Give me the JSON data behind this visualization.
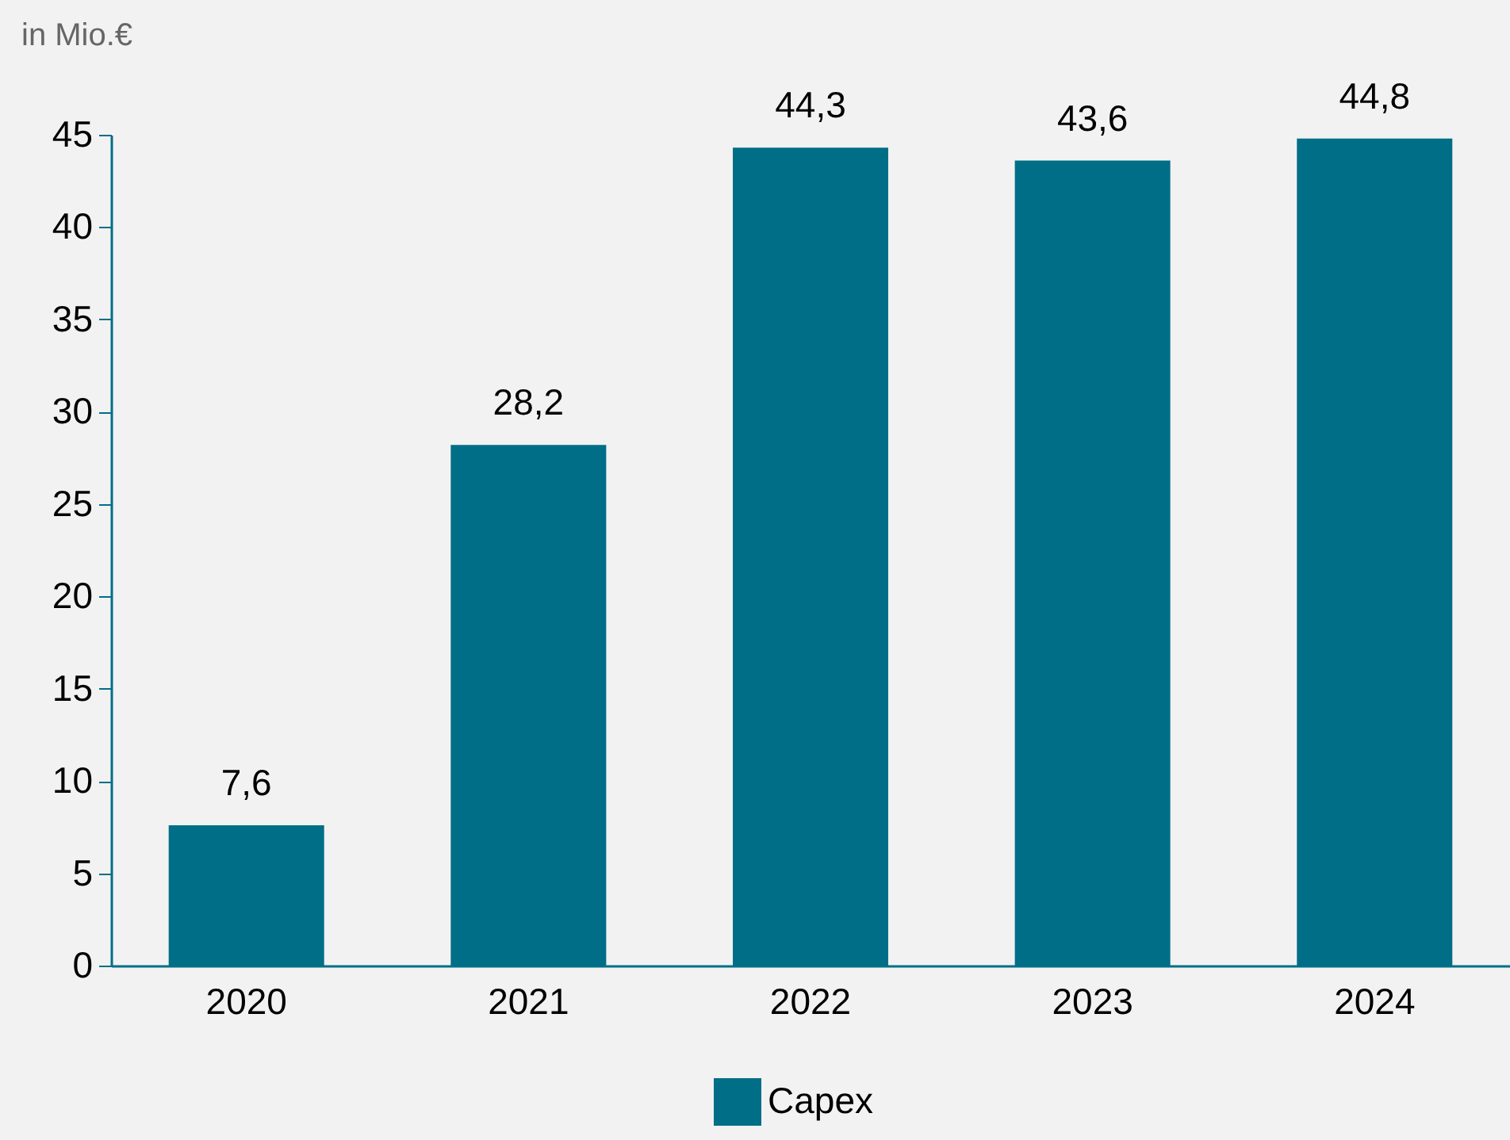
{
  "chart_data": {
    "type": "bar",
    "ylabel": "in Mio.€",
    "categories": [
      "2020",
      "2021",
      "2022",
      "2023",
      "2024"
    ],
    "series": [
      {
        "name": "Capex",
        "color": "#006e87",
        "values": [
          7.6,
          28.2,
          44.3,
          43.6,
          44.8
        ],
        "value_labels": [
          "7,6",
          "28,2",
          "44,3",
          "43,6",
          "44,8"
        ]
      }
    ],
    "ylim": [
      0,
      45
    ],
    "yticks": [
      0,
      5,
      10,
      15,
      20,
      25,
      30,
      35,
      40,
      45
    ],
    "grid": false,
    "legend": "bottom"
  }
}
